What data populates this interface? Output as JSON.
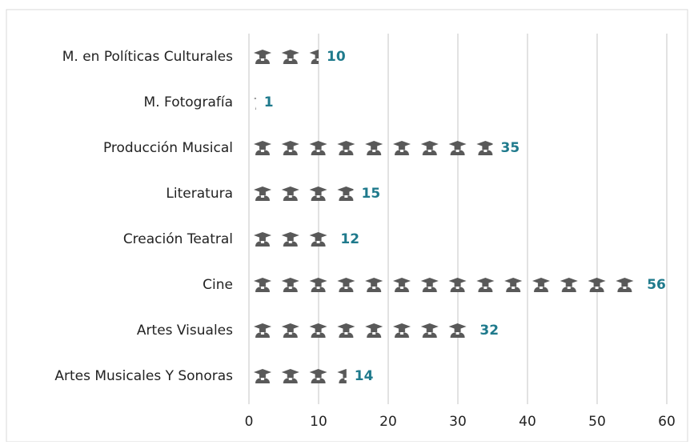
{
  "chart_data": {
    "type": "pictograph",
    "orientation": "horizontal",
    "categories": [
      "M. en Políticas Culturales",
      "M. Fotografía",
      "Producción Musical",
      "Literatura",
      "Creación Teatral",
      "Cine",
      "Artes Visuales",
      "Artes Musicales Y Sonoras"
    ],
    "values": [
      10,
      1,
      35,
      15,
      12,
      56,
      32,
      14
    ],
    "color": "#595959",
    "label_color": "#1f7a8c",
    "xlim": [
      0,
      60
    ],
    "xticks": [
      0,
      10,
      20,
      30,
      40,
      50,
      60
    ],
    "grid": true
  }
}
